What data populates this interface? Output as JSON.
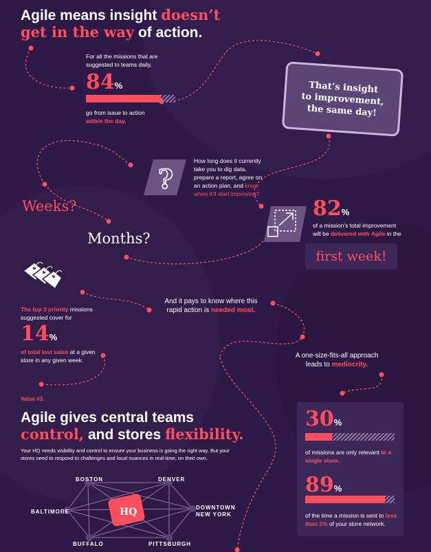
{
  "section1": {
    "title_part1": "Agile means insight ",
    "title_highlight": "doesn’t get in the way",
    "title_part2": " of action."
  },
  "stat_84": {
    "intro": "For all the missions that are suggested to teams daily,",
    "value": "84",
    "unit": "%",
    "fraction": 0.84,
    "text": "go from issue to action",
    "highlight": "within the day."
  },
  "callout": {
    "line1": "That’s insight",
    "line2": "to improvement,",
    "line3": "the same day!"
  },
  "question": {
    "text": "How long does it currently take you to dig data, prepare a report, agree on an action plan, and ",
    "highlight": "know when it’ll start improving?"
  },
  "weeks": "Weeks?",
  "months": "Months?",
  "stat_82": {
    "value": "82",
    "unit": "%",
    "text": "of a mission’s total improvement will be ",
    "highlight": "delivered with Agile",
    "text2": " in the",
    "box": "first week!"
  },
  "stat_14": {
    "intro_highlight": "The top 3 priority",
    "intro": " missions suggested cover for",
    "value": "14",
    "unit": "%",
    "highlight": "of total lost sales",
    "text": " at a given store in any given week."
  },
  "rapid": {
    "text": "And it pays to know where this rapid action is ",
    "highlight": "needed most."
  },
  "onesize": {
    "text": "A one-size-fits-all approach leads to ",
    "highlight": "mediocrity."
  },
  "section3": {
    "label": "Value #3.",
    "title_part1": "Agile gives central teams",
    "title_highlight1": "control,",
    "title_mid": " and stores ",
    "title_highlight2": "flexibility.",
    "body": "Your HQ needs visibility and control to ensure your business is going the right way. But your stores need to respond to challenges and local nuances in real-time, on their own."
  },
  "network": {
    "hub": "HQ",
    "cities": [
      "BOSTON",
      "DENVER",
      "BALTIMORE",
      "DOWNTOWN",
      "NEW YORK",
      "BUFFALO",
      "PITTSBURGH"
    ]
  },
  "stat_30": {
    "value": "30",
    "unit": "%",
    "fraction": 0.3,
    "text": "of missions are only relevant ",
    "highlight": "to a single store."
  },
  "stat_89": {
    "value": "89",
    "unit": "%",
    "fraction": 0.89,
    "text": "of the time a mission is sent to ",
    "highlight": "less than 2%",
    "text2": " of your store network."
  }
}
